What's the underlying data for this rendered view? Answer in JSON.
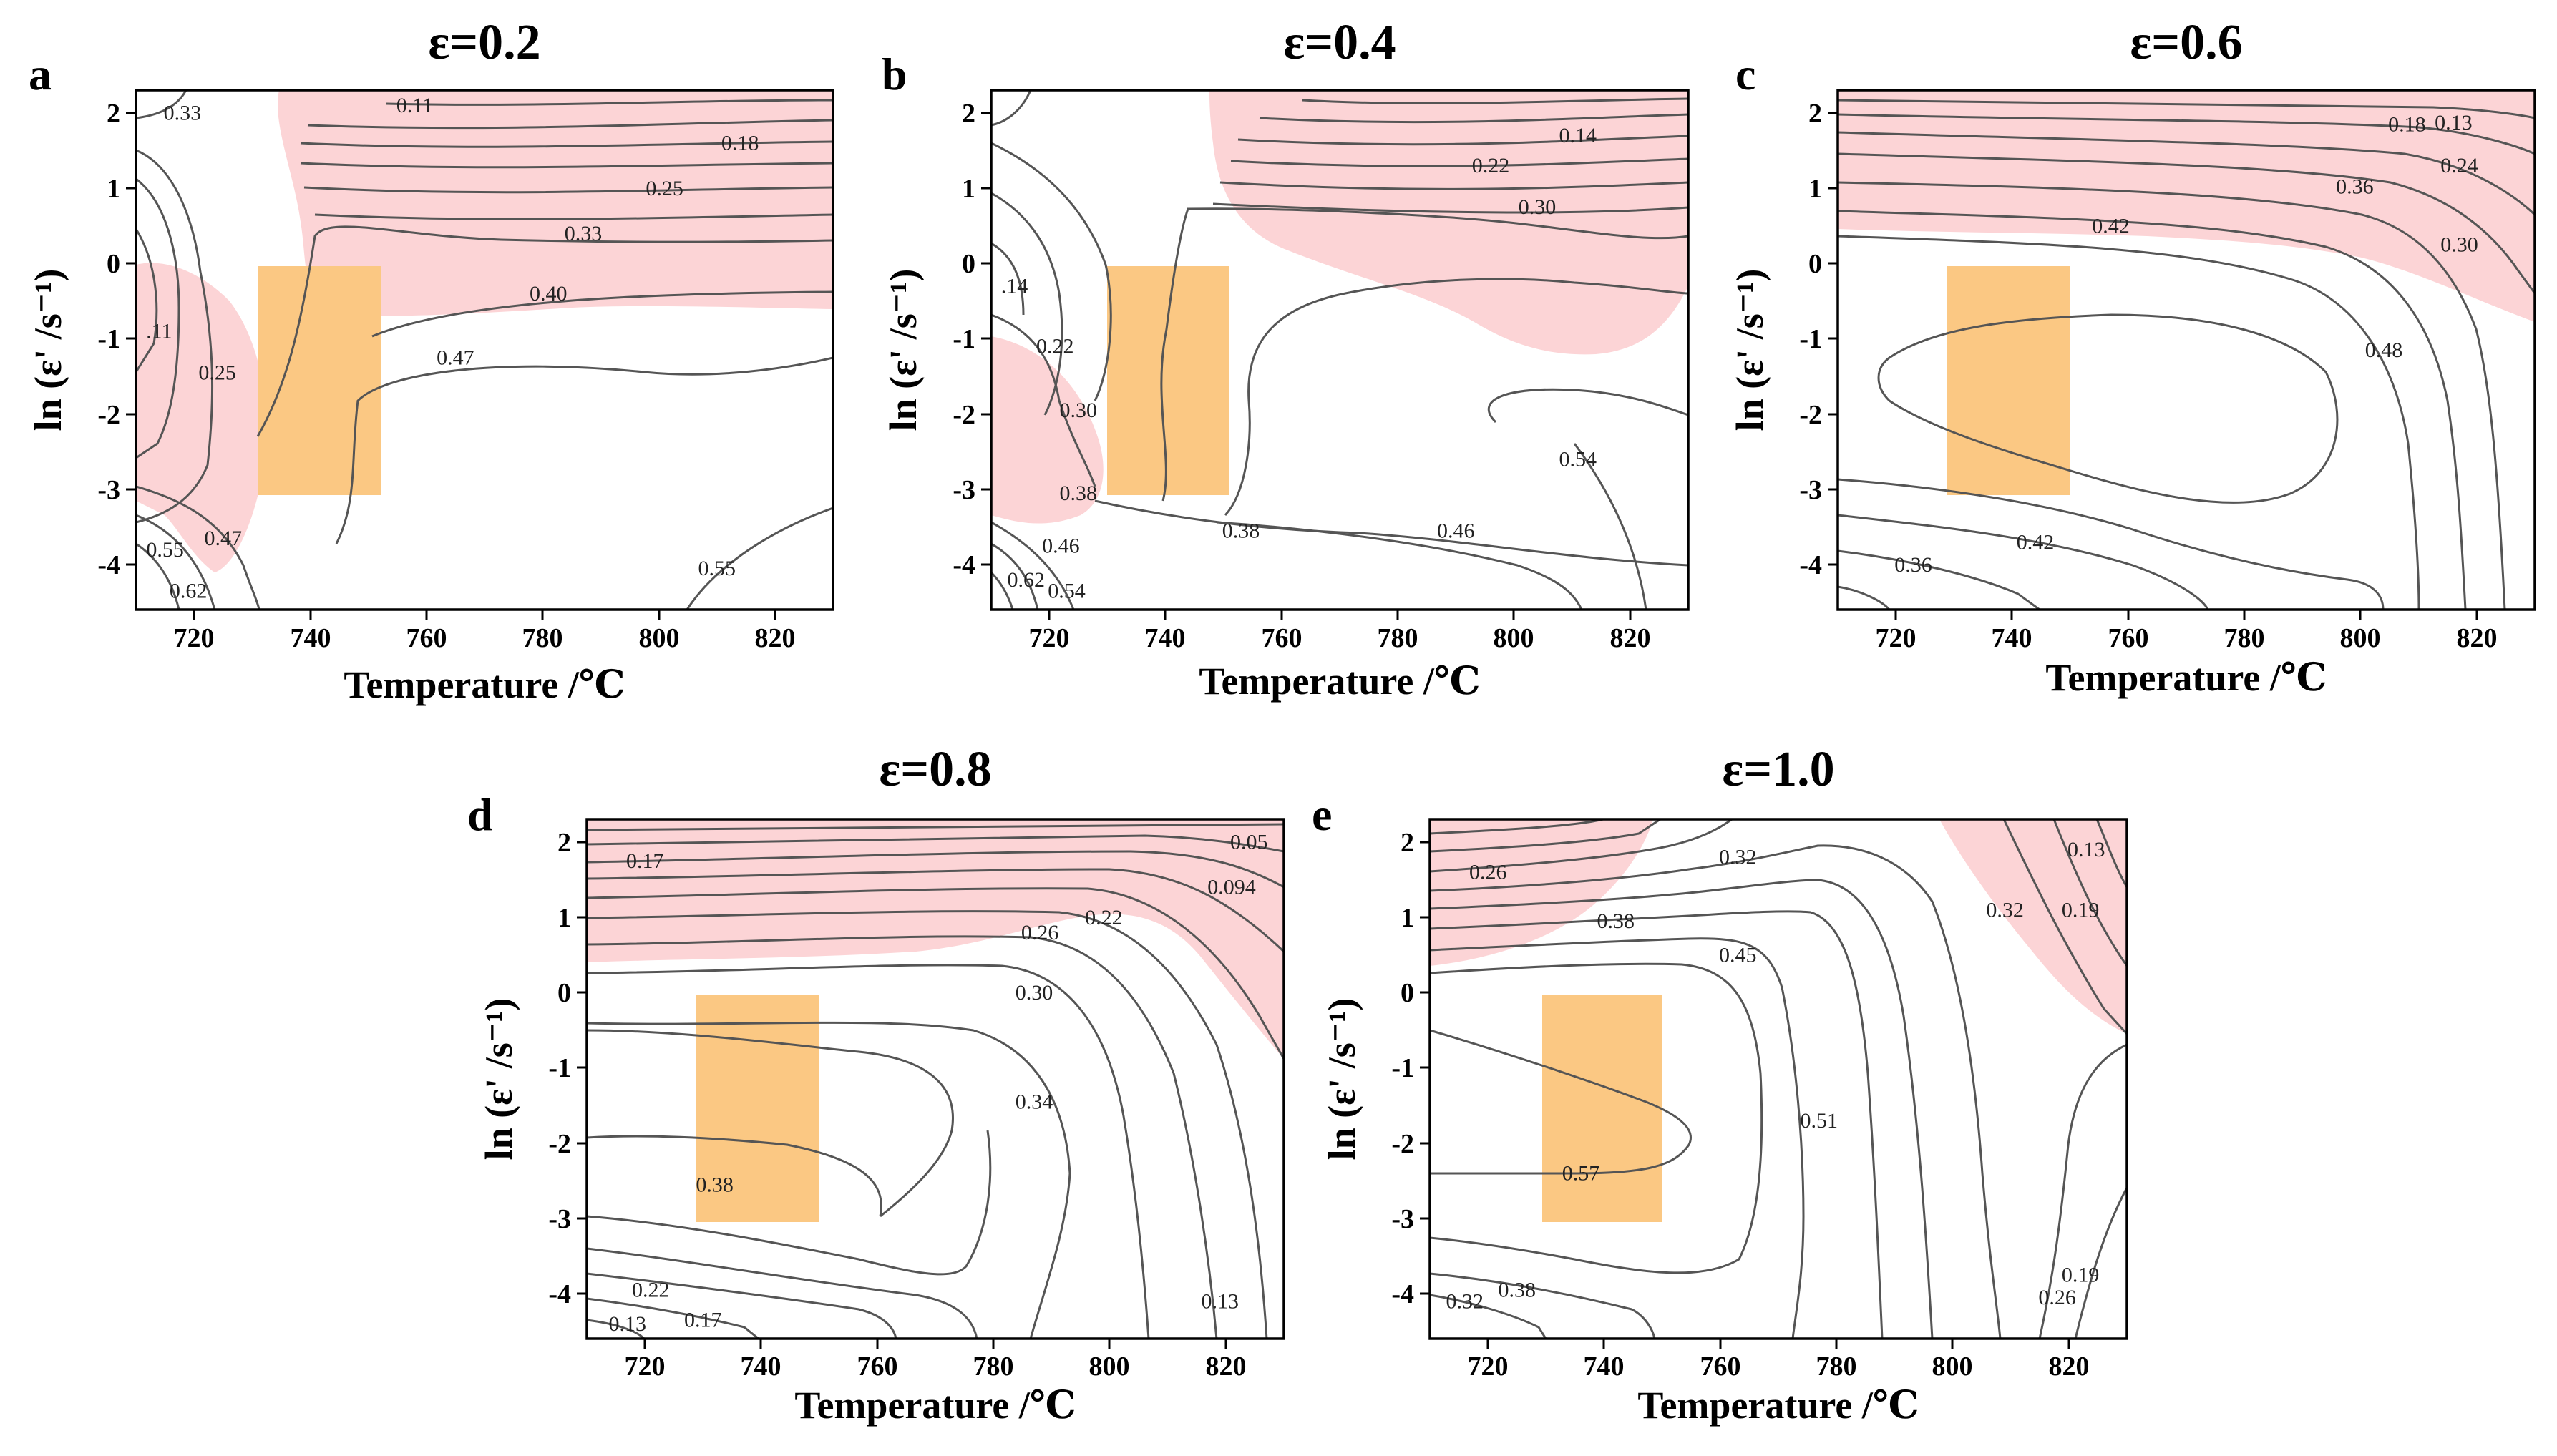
{
  "chart_data": [
    {
      "panel": "a",
      "type": "contour",
      "title": "ε=0.2",
      "xlabel": "Temperature /℃",
      "ylabel": "ln (ε' /s⁻¹)",
      "xlim": [
        710,
        830
      ],
      "ylim": [
        -4.6,
        2.3
      ],
      "xticks": [
        720,
        740,
        760,
        780,
        800,
        820
      ],
      "yticks": [
        2,
        1,
        0,
        -1,
        -2,
        -3,
        -4
      ],
      "contour_labels": [
        {
          "text": "0.33",
          "x": 718,
          "y": 2.0
        },
        {
          "text": "0.11",
          "x": 758,
          "y": 2.1
        },
        {
          "text": "0.18",
          "x": 814,
          "y": 1.6
        },
        {
          "text": "0.25",
          "x": 801,
          "y": 1.0
        },
        {
          "text": "0.33",
          "x": 787,
          "y": 0.4
        },
        {
          "text": "0.40",
          "x": 781,
          "y": -0.4
        },
        {
          "text": "0.47",
          "x": 765,
          "y": -1.25
        },
        {
          "text": ".11",
          "x": 714,
          "y": -0.9
        },
        {
          "text": "0.25",
          "x": 724,
          "y": -1.45
        },
        {
          "text": "0.47",
          "x": 725,
          "y": -3.65
        },
        {
          "text": "0.55",
          "x": 715,
          "y": -3.8
        },
        {
          "text": "0.62",
          "x": 719,
          "y": -4.35
        },
        {
          "text": "0.55",
          "x": 810,
          "y": -4.05
        }
      ],
      "regions": [
        {
          "kind": "instability",
          "color": "#fcd4d6",
          "approx_xrange": [
            735,
            830
          ],
          "approx_yrange": [
            -0.7,
            2.3
          ]
        },
        {
          "kind": "instability",
          "color": "#fcd4d6",
          "approx_xrange": [
            710,
            728
          ],
          "approx_yrange": [
            -3.6,
            0
          ]
        },
        {
          "kind": "optimal window",
          "color": "#fbc883",
          "xrange": [
            731,
            752
          ],
          "yrange": [
            -3.1,
            0
          ]
        }
      ]
    },
    {
      "panel": "b",
      "type": "contour",
      "title": "ε=0.4",
      "xlabel": "Temperature /℃",
      "ylabel": "ln (ε' /s⁻¹)",
      "xlim": [
        710,
        830
      ],
      "ylim": [
        -4.6,
        2.3
      ],
      "xticks": [
        720,
        740,
        760,
        780,
        800,
        820
      ],
      "yticks": [
        2,
        1,
        0,
        -1,
        -2,
        -3,
        -4
      ],
      "contour_labels": [
        {
          "text": "0.14",
          "x": 811,
          "y": 1.7
        },
        {
          "text": "0.22",
          "x": 796,
          "y": 1.3
        },
        {
          "text": "0.30",
          "x": 804,
          "y": 0.75
        },
        {
          "text": ".14",
          "x": 714,
          "y": -0.3
        },
        {
          "text": "0.22",
          "x": 721,
          "y": -1.1
        },
        {
          "text": "0.30",
          "x": 725,
          "y": -1.95
        },
        {
          "text": "0.38",
          "x": 725,
          "y": -3.05
        },
        {
          "text": "0.38",
          "x": 753,
          "y": -3.55
        },
        {
          "text": "0.46",
          "x": 790,
          "y": -3.55
        },
        {
          "text": "0.54",
          "x": 811,
          "y": -2.6
        },
        {
          "text": "0.46",
          "x": 722,
          "y": -3.75
        },
        {
          "text": "0.62",
          "x": 716,
          "y": -4.2
        },
        {
          "text": "0.54",
          "x": 723,
          "y": -4.35
        }
      ],
      "regions": [
        {
          "kind": "instability",
          "color": "#fcd4d6",
          "approx_xrange": [
            766,
            830
          ],
          "approx_yrange": [
            -1.2,
            2.3
          ]
        },
        {
          "kind": "instability",
          "color": "#fcd4d6",
          "approx_xrange": [
            710,
            730
          ],
          "approx_yrange": [
            -3.4,
            -0.5
          ]
        },
        {
          "kind": "optimal window",
          "color": "#fbc883",
          "xrange": [
            730,
            751
          ],
          "yrange": [
            -3.1,
            0
          ]
        }
      ]
    },
    {
      "panel": "c",
      "type": "contour",
      "title": "ε=0.6",
      "xlabel": "Temperature /℃",
      "ylabel": "ln (ε' /s⁻¹)",
      "xlim": [
        710,
        830
      ],
      "ylim": [
        -4.6,
        2.3
      ],
      "xticks": [
        720,
        740,
        760,
        780,
        800,
        820
      ],
      "yticks": [
        2,
        1,
        0,
        -1,
        -2,
        -3,
        -4
      ],
      "contour_labels": [
        {
          "text": "0.18",
          "x": 808,
          "y": 1.85
        },
        {
          "text": "0.13",
          "x": 816,
          "y": 1.87
        },
        {
          "text": "0.24",
          "x": 817,
          "y": 1.3
        },
        {
          "text": "0.36",
          "x": 799,
          "y": 1.02
        },
        {
          "text": "0.42",
          "x": 757,
          "y": 0.5
        },
        {
          "text": "0.30",
          "x": 817,
          "y": 0.25
        },
        {
          "text": "0.48",
          "x": 804,
          "y": -1.15
        },
        {
          "text": "0.42",
          "x": 744,
          "y": -3.7
        },
        {
          "text": "0.36",
          "x": 723,
          "y": -4.0
        }
      ],
      "regions": [
        {
          "kind": "instability",
          "color": "#fcd4d6",
          "approx_xrange": [
            710,
            830
          ],
          "approx_yrange": [
            -0.4,
            2.3
          ]
        },
        {
          "kind": "optimal window",
          "color": "#fbc883",
          "xrange": [
            729,
            750
          ],
          "yrange": [
            -3.1,
            0
          ]
        }
      ]
    },
    {
      "panel": "d",
      "type": "contour",
      "title": "ε=0.8",
      "xlabel": "Temperature /℃",
      "ylabel": "ln (ε' /s⁻¹)",
      "xlim": [
        710,
        830
      ],
      "ylim": [
        -4.6,
        2.3
      ],
      "xticks": [
        720,
        740,
        760,
        780,
        800,
        820
      ],
      "yticks": [
        2,
        1,
        0,
        -1,
        -2,
        -3,
        -4
      ],
      "contour_labels": [
        {
          "text": "0.17",
          "x": 720,
          "y": 1.75
        },
        {
          "text": "0.05",
          "x": 824,
          "y": 2.0
        },
        {
          "text": "0.094",
          "x": 821,
          "y": 1.4
        },
        {
          "text": "0.22",
          "x": 799,
          "y": 1.0
        },
        {
          "text": "0.26",
          "x": 788,
          "y": 0.8
        },
        {
          "text": "0.30",
          "x": 787,
          "y": 0.0
        },
        {
          "text": "0.34",
          "x": 787,
          "y": -1.45
        },
        {
          "text": "0.38",
          "x": 732,
          "y": -2.55
        },
        {
          "text": "0.22",
          "x": 721,
          "y": -3.95
        },
        {
          "text": "0.13",
          "x": 717,
          "y": -4.4
        },
        {
          "text": "0.17",
          "x": 730,
          "y": -4.35
        },
        {
          "text": "0.13",
          "x": 819,
          "y": -4.1
        }
      ],
      "regions": [
        {
          "kind": "instability",
          "color": "#fcd4d6",
          "approx_xrange": [
            710,
            830
          ],
          "approx_yrange": [
            -0.8,
            2.3
          ]
        },
        {
          "kind": "optimal window",
          "color": "#fbc883",
          "xrange": [
            729,
            750
          ],
          "yrange": [
            -3.1,
            0
          ]
        }
      ]
    },
    {
      "panel": "e",
      "type": "contour",
      "title": "ε=1.0",
      "xlabel": "Temperature /℃",
      "ylabel": "ln (ε' /s⁻¹)",
      "xlim": [
        710,
        830
      ],
      "ylim": [
        -4.6,
        2.3
      ],
      "xticks": [
        720,
        740,
        760,
        780,
        800,
        820
      ],
      "yticks": [
        2,
        1,
        0,
        -1,
        -2,
        -3,
        -4
      ],
      "contour_labels": [
        {
          "text": "0.26",
          "x": 720,
          "y": 1.6
        },
        {
          "text": "0.32",
          "x": 763,
          "y": 1.8
        },
        {
          "text": "0.38",
          "x": 742,
          "y": 0.95
        },
        {
          "text": "0.45",
          "x": 763,
          "y": 0.5
        },
        {
          "text": "0.32",
          "x": 809,
          "y": 1.1
        },
        {
          "text": "0.13",
          "x": 823,
          "y": 1.9
        },
        {
          "text": "0.19",
          "x": 822,
          "y": 1.1
        },
        {
          "text": "0.51",
          "x": 777,
          "y": -1.7
        },
        {
          "text": "0.57",
          "x": 736,
          "y": -2.4
        },
        {
          "text": "0.38",
          "x": 725,
          "y": -3.95
        },
        {
          "text": "0.32",
          "x": 716,
          "y": -4.1
        },
        {
          "text": "0.26",
          "x": 818,
          "y": -4.05
        },
        {
          "text": "0.19",
          "x": 822,
          "y": -3.75
        }
      ],
      "regions": [
        {
          "kind": "instability",
          "color": "#fcd4d6",
          "approx_xrange": [
            710,
            740
          ],
          "approx_yrange": [
            0.3,
            2.3
          ]
        },
        {
          "kind": "instability",
          "color": "#fcd4d6",
          "approx_xrange": [
            803,
            830
          ],
          "approx_yrange": [
            -0.6,
            2.3
          ]
        },
        {
          "kind": "optimal window",
          "color": "#fbc883",
          "xrange": [
            730,
            750
          ],
          "yrange": [
            -3.1,
            0
          ]
        }
      ]
    }
  ]
}
